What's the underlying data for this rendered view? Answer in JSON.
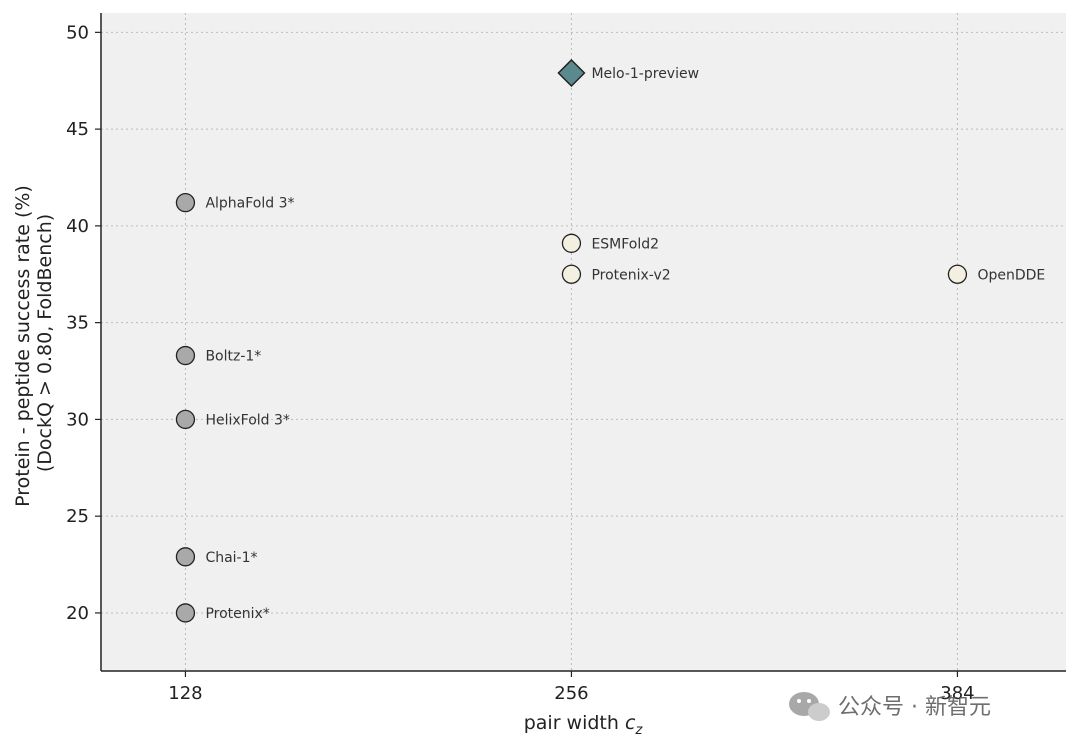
{
  "chart_data": {
    "type": "scatter",
    "xlabel": "pair width",
    "xlabel_symbol": "c",
    "xlabel_subscript": "z",
    "ylabel_line1": "Protein - peptide success rate (%)",
    "ylabel_line2": "(DockQ > 0.80, FoldBench)",
    "x_ticks": [
      128,
      256,
      384
    ],
    "y_ticks": [
      20,
      25,
      30,
      35,
      40,
      45,
      50
    ],
    "xlim": [
      100,
      420
    ],
    "ylim": [
      17,
      51
    ],
    "grid": true,
    "points": [
      {
        "label": "Melo-1-preview",
        "x": 256,
        "y": 47.9,
        "marker": "diamond",
        "color": "#5b8a8e"
      },
      {
        "label": "AlphaFold 3*",
        "x": 128,
        "y": 41.2,
        "marker": "circle",
        "color": "#a9a9a9"
      },
      {
        "label": "ESMFold2",
        "x": 256,
        "y": 39.1,
        "marker": "circle",
        "color": "#f3f0e2"
      },
      {
        "label": "Protenix-v2",
        "x": 256,
        "y": 37.5,
        "marker": "circle",
        "color": "#f3f0e2"
      },
      {
        "label": "OpenDDE",
        "x": 384,
        "y": 37.5,
        "marker": "circle",
        "color": "#f3f0e2"
      },
      {
        "label": "Boltz-1*",
        "x": 128,
        "y": 33.3,
        "marker": "circle",
        "color": "#a9a9a9"
      },
      {
        "label": "HelixFold 3*",
        "x": 128,
        "y": 30.0,
        "marker": "circle",
        "color": "#a9a9a9"
      },
      {
        "label": "Chai-1*",
        "x": 128,
        "y": 22.9,
        "marker": "circle",
        "color": "#a9a9a9"
      },
      {
        "label": "Protenix*",
        "x": 128,
        "y": 20.0,
        "marker": "circle",
        "color": "#a9a9a9"
      }
    ]
  },
  "watermark": {
    "text": "公众号 · 新智元"
  },
  "colors": {
    "plot_bg": "#f0f0f0",
    "grid": "#bbbbbb",
    "axis": "#222222"
  }
}
